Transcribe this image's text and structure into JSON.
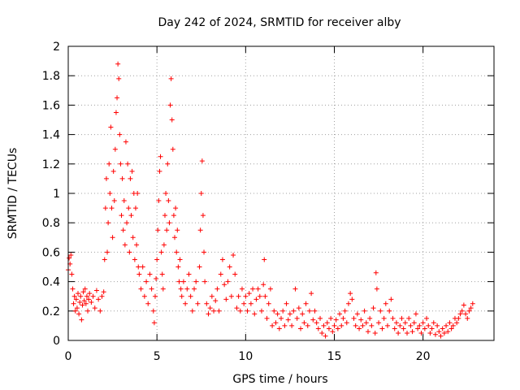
{
  "chart_data": {
    "type": "scatter",
    "title": "Day 242 of 2024, SRMTID for receiver alby",
    "xlabel": "GPS time / hours",
    "ylabel": "SRMTID / TECUs",
    "xlim": [
      0,
      24
    ],
    "ylim": [
      0,
      2
    ],
    "xticks": [
      0,
      5,
      10,
      15,
      20
    ],
    "xtick_labels": [
      "0",
      "5",
      "10",
      "15",
      "20"
    ],
    "yticks": [
      0,
      0.2,
      0.4,
      0.6,
      0.8,
      1,
      1.2,
      1.4,
      1.6,
      1.8,
      2
    ],
    "ytick_labels": [
      "0",
      "0.2",
      "0.4",
      "0.6",
      "0.8",
      "1",
      "1.2",
      "1.4",
      "1.6",
      "1.8",
      "2"
    ],
    "grid": true,
    "marker": "+",
    "color": "#ff0000",
    "series": [
      {
        "name": "alby",
        "points": [
          [
            0.0,
            0.48
          ],
          [
            0.05,
            0.56
          ],
          [
            0.1,
            0.52
          ],
          [
            0.15,
            0.58
          ],
          [
            0.2,
            0.45
          ],
          [
            0.25,
            0.35
          ],
          [
            0.3,
            0.25
          ],
          [
            0.35,
            0.3
          ],
          [
            0.4,
            0.2
          ],
          [
            0.45,
            0.28
          ],
          [
            0.5,
            0.22
          ],
          [
            0.55,
            0.32
          ],
          [
            0.6,
            0.18
          ],
          [
            0.65,
            0.26
          ],
          [
            0.7,
            0.3
          ],
          [
            0.75,
            0.14
          ],
          [
            0.8,
            0.24
          ],
          [
            0.85,
            0.33
          ],
          [
            0.9,
            0.27
          ],
          [
            0.95,
            0.35
          ],
          [
            1.0,
            0.25
          ],
          [
            1.05,
            0.3
          ],
          [
            1.1,
            0.2
          ],
          [
            1.15,
            0.28
          ],
          [
            1.2,
            0.32
          ],
          [
            1.3,
            0.26
          ],
          [
            1.4,
            0.3
          ],
          [
            1.5,
            0.22
          ],
          [
            1.6,
            0.34
          ],
          [
            1.7,
            0.28
          ],
          [
            1.8,
            0.2
          ],
          [
            1.9,
            0.3
          ],
          [
            2.0,
            0.33
          ],
          [
            2.05,
            0.55
          ],
          [
            2.1,
            0.9
          ],
          [
            2.15,
            1.1
          ],
          [
            2.2,
            0.6
          ],
          [
            2.25,
            0.8
          ],
          [
            2.3,
            1.2
          ],
          [
            2.35,
            1.0
          ],
          [
            2.4,
            1.45
          ],
          [
            2.45,
            0.9
          ],
          [
            2.5,
            0.7
          ],
          [
            2.55,
            1.15
          ],
          [
            2.6,
            0.95
          ],
          [
            2.65,
            1.3
          ],
          [
            2.7,
            1.55
          ],
          [
            2.75,
            1.65
          ],
          [
            2.8,
            1.88
          ],
          [
            2.85,
            1.78
          ],
          [
            2.9,
            1.4
          ],
          [
            2.95,
            1.2
          ],
          [
            3.0,
            0.85
          ],
          [
            3.05,
            1.1
          ],
          [
            3.1,
            0.75
          ],
          [
            3.15,
            0.95
          ],
          [
            3.2,
            0.65
          ],
          [
            3.25,
            1.35
          ],
          [
            3.3,
            0.8
          ],
          [
            3.35,
            1.2
          ],
          [
            3.4,
            0.9
          ],
          [
            3.45,
            0.6
          ],
          [
            3.5,
            1.1
          ],
          [
            3.55,
            0.85
          ],
          [
            3.6,
            1.15
          ],
          [
            3.65,
            0.7
          ],
          [
            3.7,
            1.0
          ],
          [
            3.75,
            0.55
          ],
          [
            3.8,
            0.9
          ],
          [
            3.85,
            0.65
          ],
          [
            3.9,
            1.0
          ],
          [
            3.95,
            0.5
          ],
          [
            4.0,
            0.45
          ],
          [
            4.1,
            0.35
          ],
          [
            4.2,
            0.5
          ],
          [
            4.3,
            0.3
          ],
          [
            4.4,
            0.4
          ],
          [
            4.5,
            0.25
          ],
          [
            4.6,
            0.45
          ],
          [
            4.7,
            0.35
          ],
          [
            4.8,
            0.2
          ],
          [
            4.85,
            0.12
          ],
          [
            4.9,
            0.3
          ],
          [
            4.95,
            0.42
          ],
          [
            5.0,
            0.55
          ],
          [
            5.05,
            0.75
          ],
          [
            5.1,
            0.95
          ],
          [
            5.15,
            1.15
          ],
          [
            5.2,
            1.25
          ],
          [
            5.25,
            0.6
          ],
          [
            5.3,
            0.45
          ],
          [
            5.35,
            0.35
          ],
          [
            5.4,
            0.65
          ],
          [
            5.45,
            0.85
          ],
          [
            5.5,
            1.0
          ],
          [
            5.55,
            0.75
          ],
          [
            5.6,
            1.2
          ],
          [
            5.65,
            0.95
          ],
          [
            5.7,
            0.8
          ],
          [
            5.75,
            1.6
          ],
          [
            5.8,
            1.78
          ],
          [
            5.85,
            1.5
          ],
          [
            5.9,
            1.3
          ],
          [
            5.95,
            0.85
          ],
          [
            6.0,
            0.7
          ],
          [
            6.05,
            0.9
          ],
          [
            6.1,
            0.6
          ],
          [
            6.15,
            0.75
          ],
          [
            6.2,
            0.5
          ],
          [
            6.25,
            0.4
          ],
          [
            6.3,
            0.55
          ],
          [
            6.35,
            0.35
          ],
          [
            6.4,
            0.3
          ],
          [
            6.5,
            0.4
          ],
          [
            6.6,
            0.25
          ],
          [
            6.7,
            0.35
          ],
          [
            6.8,
            0.45
          ],
          [
            6.9,
            0.3
          ],
          [
            7.0,
            0.2
          ],
          [
            7.1,
            0.35
          ],
          [
            7.2,
            0.4
          ],
          [
            7.3,
            0.25
          ],
          [
            7.4,
            0.5
          ],
          [
            7.45,
            0.75
          ],
          [
            7.5,
            1.0
          ],
          [
            7.55,
            1.22
          ],
          [
            7.6,
            0.85
          ],
          [
            7.65,
            0.6
          ],
          [
            7.7,
            0.4
          ],
          [
            7.8,
            0.25
          ],
          [
            7.9,
            0.18
          ],
          [
            8.0,
            0.22
          ],
          [
            8.1,
            0.3
          ],
          [
            8.2,
            0.2
          ],
          [
            8.3,
            0.27
          ],
          [
            8.4,
            0.35
          ],
          [
            8.5,
            0.2
          ],
          [
            8.6,
            0.45
          ],
          [
            8.7,
            0.55
          ],
          [
            8.8,
            0.38
          ],
          [
            8.9,
            0.28
          ],
          [
            9.0,
            0.4
          ],
          [
            9.1,
            0.5
          ],
          [
            9.2,
            0.3
          ],
          [
            9.3,
            0.58
          ],
          [
            9.4,
            0.45
          ],
          [
            9.5,
            0.22
          ],
          [
            9.6,
            0.3
          ],
          [
            9.7,
            0.2
          ],
          [
            9.8,
            0.35
          ],
          [
            9.9,
            0.25
          ],
          [
            10.0,
            0.3
          ],
          [
            10.1,
            0.2
          ],
          [
            10.2,
            0.32
          ],
          [
            10.3,
            0.25
          ],
          [
            10.4,
            0.35
          ],
          [
            10.5,
            0.18
          ],
          [
            10.6,
            0.28
          ],
          [
            10.7,
            0.35
          ],
          [
            10.8,
            0.3
          ],
          [
            10.9,
            0.2
          ],
          [
            11.0,
            0.38
          ],
          [
            11.05,
            0.55
          ],
          [
            11.1,
            0.3
          ],
          [
            11.2,
            0.15
          ],
          [
            11.3,
            0.25
          ],
          [
            11.4,
            0.35
          ],
          [
            11.5,
            0.1
          ],
          [
            11.6,
            0.2
          ],
          [
            11.7,
            0.12
          ],
          [
            11.8,
            0.18
          ],
          [
            11.9,
            0.08
          ],
          [
            12.0,
            0.15
          ],
          [
            12.1,
            0.2
          ],
          [
            12.2,
            0.1
          ],
          [
            12.3,
            0.25
          ],
          [
            12.4,
            0.14
          ],
          [
            12.5,
            0.18
          ],
          [
            12.6,
            0.1
          ],
          [
            12.7,
            0.2
          ],
          [
            12.8,
            0.35
          ],
          [
            12.9,
            0.15
          ],
          [
            13.0,
            0.22
          ],
          [
            13.1,
            0.08
          ],
          [
            13.2,
            0.18
          ],
          [
            13.3,
            0.12
          ],
          [
            13.4,
            0.25
          ],
          [
            13.5,
            0.1
          ],
          [
            13.6,
            0.2
          ],
          [
            13.7,
            0.32
          ],
          [
            13.8,
            0.14
          ],
          [
            13.9,
            0.2
          ],
          [
            14.0,
            0.12
          ],
          [
            14.1,
            0.08
          ],
          [
            14.2,
            0.15
          ],
          [
            14.3,
            0.05
          ],
          [
            14.4,
            0.1
          ],
          [
            14.5,
            0.03
          ],
          [
            14.6,
            0.12
          ],
          [
            14.7,
            0.08
          ],
          [
            14.8,
            0.15
          ],
          [
            14.9,
            0.06
          ],
          [
            15.0,
            0.1
          ],
          [
            15.1,
            0.14
          ],
          [
            15.2,
            0.08
          ],
          [
            15.3,
            0.18
          ],
          [
            15.4,
            0.1
          ],
          [
            15.5,
            0.15
          ],
          [
            15.6,
            0.2
          ],
          [
            15.7,
            0.12
          ],
          [
            15.8,
            0.25
          ],
          [
            15.9,
            0.32
          ],
          [
            16.0,
            0.28
          ],
          [
            16.1,
            0.15
          ],
          [
            16.2,
            0.1
          ],
          [
            16.3,
            0.18
          ],
          [
            16.4,
            0.08
          ],
          [
            16.5,
            0.14
          ],
          [
            16.6,
            0.1
          ],
          [
            16.7,
            0.2
          ],
          [
            16.8,
            0.12
          ],
          [
            16.9,
            0.06
          ],
          [
            17.0,
            0.15
          ],
          [
            17.1,
            0.1
          ],
          [
            17.2,
            0.22
          ],
          [
            17.3,
            0.05
          ],
          [
            17.35,
            0.46
          ],
          [
            17.4,
            0.35
          ],
          [
            17.5,
            0.12
          ],
          [
            17.6,
            0.2
          ],
          [
            17.7,
            0.08
          ],
          [
            17.8,
            0.15
          ],
          [
            17.9,
            0.25
          ],
          [
            18.0,
            0.1
          ],
          [
            18.1,
            0.2
          ],
          [
            18.2,
            0.28
          ],
          [
            18.3,
            0.15
          ],
          [
            18.4,
            0.08
          ],
          [
            18.5,
            0.12
          ],
          [
            18.6,
            0.05
          ],
          [
            18.7,
            0.1
          ],
          [
            18.8,
            0.15
          ],
          [
            18.9,
            0.08
          ],
          [
            19.0,
            0.12
          ],
          [
            19.1,
            0.05
          ],
          [
            19.2,
            0.15
          ],
          [
            19.3,
            0.1
          ],
          [
            19.4,
            0.06
          ],
          [
            19.5,
            0.12
          ],
          [
            19.6,
            0.18
          ],
          [
            19.7,
            0.08
          ],
          [
            19.8,
            0.1
          ],
          [
            19.9,
            0.05
          ],
          [
            20.0,
            0.12
          ],
          [
            20.1,
            0.08
          ],
          [
            20.2,
            0.15
          ],
          [
            20.3,
            0.1
          ],
          [
            20.4,
            0.05
          ],
          [
            20.5,
            0.08
          ],
          [
            20.6,
            0.12
          ],
          [
            20.7,
            0.04
          ],
          [
            20.8,
            0.1
          ],
          [
            20.9,
            0.06
          ],
          [
            21.0,
            0.03
          ],
          [
            21.1,
            0.08
          ],
          [
            21.2,
            0.05
          ],
          [
            21.3,
            0.1
          ],
          [
            21.4,
            0.06
          ],
          [
            21.5,
            0.12
          ],
          [
            21.6,
            0.08
          ],
          [
            21.7,
            0.1
          ],
          [
            21.8,
            0.15
          ],
          [
            21.9,
            0.12
          ],
          [
            22.0,
            0.15
          ],
          [
            22.1,
            0.18
          ],
          [
            22.2,
            0.2
          ],
          [
            22.3,
            0.24
          ],
          [
            22.4,
            0.18
          ],
          [
            22.5,
            0.15
          ],
          [
            22.6,
            0.2
          ],
          [
            22.7,
            0.22
          ],
          [
            22.8,
            0.25
          ]
        ]
      }
    ]
  }
}
